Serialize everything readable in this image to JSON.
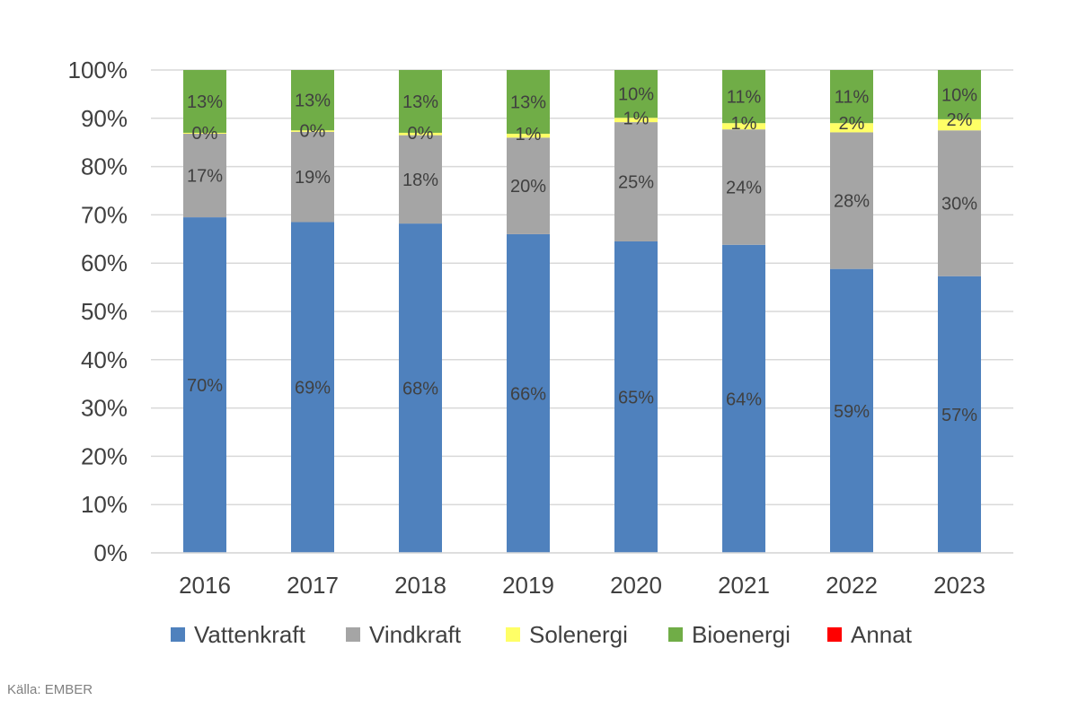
{
  "chart_data": {
    "type": "bar",
    "stacked": true,
    "categories": [
      "2016",
      "2017",
      "2018",
      "2019",
      "2020",
      "2021",
      "2022",
      "2023"
    ],
    "series": [
      {
        "name": "Vattenkraft",
        "color": "#4f81bd",
        "values": [
          69.5,
          68.5,
          68.2,
          66.0,
          64.5,
          63.8,
          58.8,
          57.3
        ],
        "labels": [
          "70%",
          "69%",
          "68%",
          "66%",
          "65%",
          "64%",
          "59%",
          "57%"
        ]
      },
      {
        "name": "Vindkraft",
        "color": "#a5a5a5",
        "values": [
          17.3,
          18.7,
          18.3,
          20.0,
          24.7,
          23.9,
          28.3,
          30.2
        ],
        "labels": [
          "17%",
          "19%",
          "18%",
          "20%",
          "25%",
          "24%",
          "28%",
          "30%"
        ]
      },
      {
        "name": "Solenergi",
        "color": "#ffff66",
        "values": [
          0.2,
          0.3,
          0.5,
          0.8,
          0.9,
          1.3,
          1.9,
          2.3
        ],
        "labels": [
          "0%",
          "0%",
          "0%",
          "1%",
          "1%",
          "1%",
          "2%",
          "2%"
        ]
      },
      {
        "name": "Bioenergi",
        "color": "#70ad47",
        "values": [
          13.0,
          12.5,
          13.0,
          13.2,
          9.9,
          11.0,
          11.0,
          10.2
        ],
        "labels": [
          "13%",
          "13%",
          "13%",
          "13%",
          "10%",
          "11%",
          "11%",
          "10%"
        ]
      },
      {
        "name": "Annat",
        "color": "#ff0000",
        "values": [
          0,
          0,
          0,
          0,
          0,
          0,
          0,
          0
        ],
        "labels": [
          "",
          "",
          "",
          "",
          "",
          "",
          "",
          ""
        ]
      }
    ],
    "ylim": [
      0,
      100
    ],
    "yticks": [
      "0%",
      "10%",
      "20%",
      "30%",
      "40%",
      "50%",
      "60%",
      "70%",
      "80%",
      "90%",
      "100%"
    ],
    "grid": true,
    "legend_position": "bottom"
  },
  "source": "Källa: EMBER"
}
